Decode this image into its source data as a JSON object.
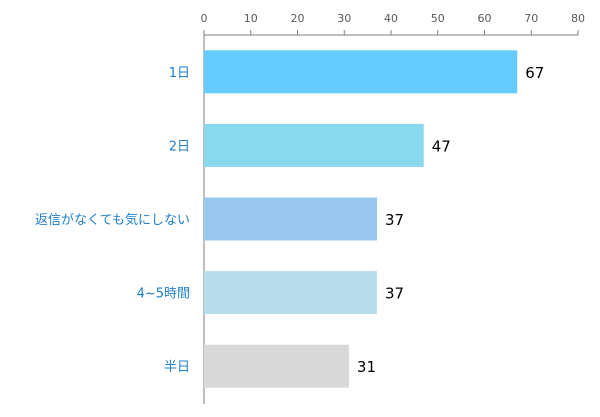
{
  "chart_data": {
    "type": "bar",
    "orientation": "horizontal",
    "categories": [
      "1日",
      "2日",
      "返信がなくても気にしない",
      "4~5時間",
      "半日"
    ],
    "values": [
      67,
      47,
      37,
      37,
      31
    ],
    "bar_colors": [
      "#66ccff",
      "#8ad8ee",
      "#99c6ee",
      "#b6dde9",
      "#d9d9d9"
    ],
    "category_label_color": "#1f7fc9",
    "axis_color": "#7f7f7f",
    "xlim": [
      0,
      80
    ],
    "ticks": [
      0,
      10,
      20,
      30,
      40,
      50,
      60,
      70,
      80
    ],
    "tick_labels": [
      "0",
      "10",
      "20",
      "30",
      "40",
      "50",
      "60",
      "70",
      "80"
    ],
    "x_axis_position": "top",
    "grid": false,
    "legend": "none",
    "title": "",
    "xlabel": "",
    "ylabel": ""
  }
}
